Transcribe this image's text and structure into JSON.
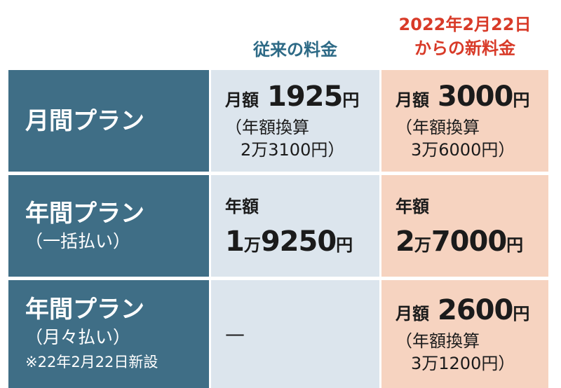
{
  "header": {
    "old": "従来の料金",
    "new_line1": "2022年2月22日",
    "new_line2": "からの新料金"
  },
  "rows": [
    {
      "label": "月間プラン",
      "old": {
        "prefix": "月額",
        "amount": "1925円",
        "note1": "（年額換算",
        "note2": "2万3100円）"
      },
      "new": {
        "prefix": "月額",
        "amount": "3000円",
        "note1": "（年額換算",
        "note2": "3万6000円）"
      }
    },
    {
      "label": "年間プラン",
      "sublabel": "（一括払い）",
      "old": {
        "prefix": "年額",
        "amount": "1万9250円"
      },
      "new": {
        "prefix": "年額",
        "amount": "2万7000円"
      }
    },
    {
      "label": "年間プラン",
      "sublabel": "（月々払い）",
      "footnote": "※22年2月22日新設",
      "old": {
        "text": "—"
      },
      "new": {
        "prefix": "月額",
        "amount": "2600円",
        "note1": "（年額換算",
        "note2": "3万1200円）"
      }
    }
  ]
}
